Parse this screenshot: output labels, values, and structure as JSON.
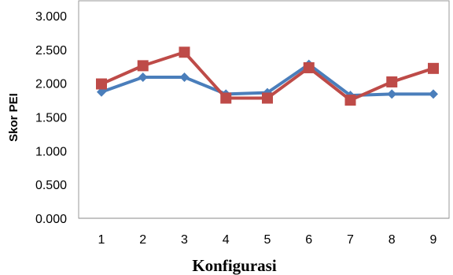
{
  "chart_data": {
    "type": "line",
    "title": "",
    "xlabel": "Konfigurasi",
    "ylabel": "Skor PEI",
    "categories": [
      "1",
      "2",
      "3",
      "4",
      "5",
      "6",
      "7",
      "8",
      "9"
    ],
    "y_ticks": [
      "0.000",
      "0.500",
      "1.000",
      "1.500",
      "2.000",
      "2.500",
      "3.000"
    ],
    "ylim": [
      0,
      3
    ],
    "grid": false,
    "legend": "none",
    "series": [
      {
        "color": "#4a7ebb",
        "marker": "diamond",
        "values": [
          1.87,
          2.09,
          2.09,
          1.84,
          1.86,
          2.28,
          1.82,
          1.84,
          1.84
        ]
      },
      {
        "color": "#be4b48",
        "marker": "square",
        "values": [
          1.99,
          2.26,
          2.46,
          1.78,
          1.78,
          2.23,
          1.75,
          2.02,
          2.22
        ]
      }
    ]
  }
}
